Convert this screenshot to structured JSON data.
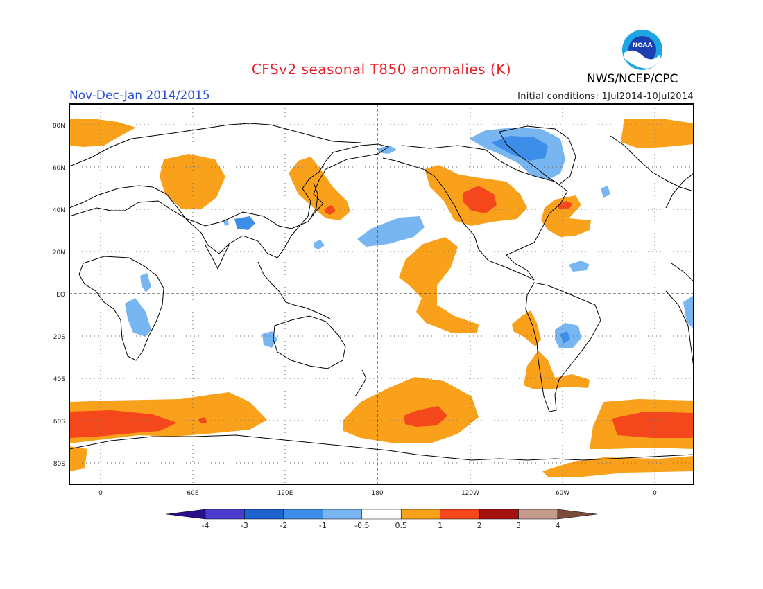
{
  "title": "CFSv2 seasonal T850 anomalies (K)",
  "period": "Nov-Dec-Jan 2014/2015",
  "initial_conditions": "Initial conditions: 1Jul2014-10Jul2014",
  "organization": "NWS/NCEP/CPC",
  "logo_text": "NOAA",
  "lat_labels": [
    "80N",
    "60N",
    "40N",
    "20N",
    "EQ",
    "20S",
    "40S",
    "60S",
    "80S"
  ],
  "lon_labels": [
    "0",
    "60E",
    "120E",
    "180",
    "120W",
    "60W",
    "0"
  ],
  "colorbar": {
    "labels": [
      "-4",
      "-3",
      "-2",
      "-1",
      "-0.5",
      "0.5",
      "1",
      "2",
      "3",
      "4"
    ],
    "colors": [
      "#2b0e8a",
      "#4a3ccf",
      "#1f63d1",
      "#3d8ee8",
      "#78b6f2",
      "#ffffff",
      "#f9a11b",
      "#f5471c",
      "#a41212",
      "#c59b8c",
      "#7a4a3a"
    ]
  },
  "colors": {
    "title": "#e8202a",
    "period": "#2a4fd8",
    "warm1": "#f9a11b",
    "warm2": "#f5471c",
    "cool1": "#78b6f2",
    "cool2": "#3d8ee8"
  }
}
